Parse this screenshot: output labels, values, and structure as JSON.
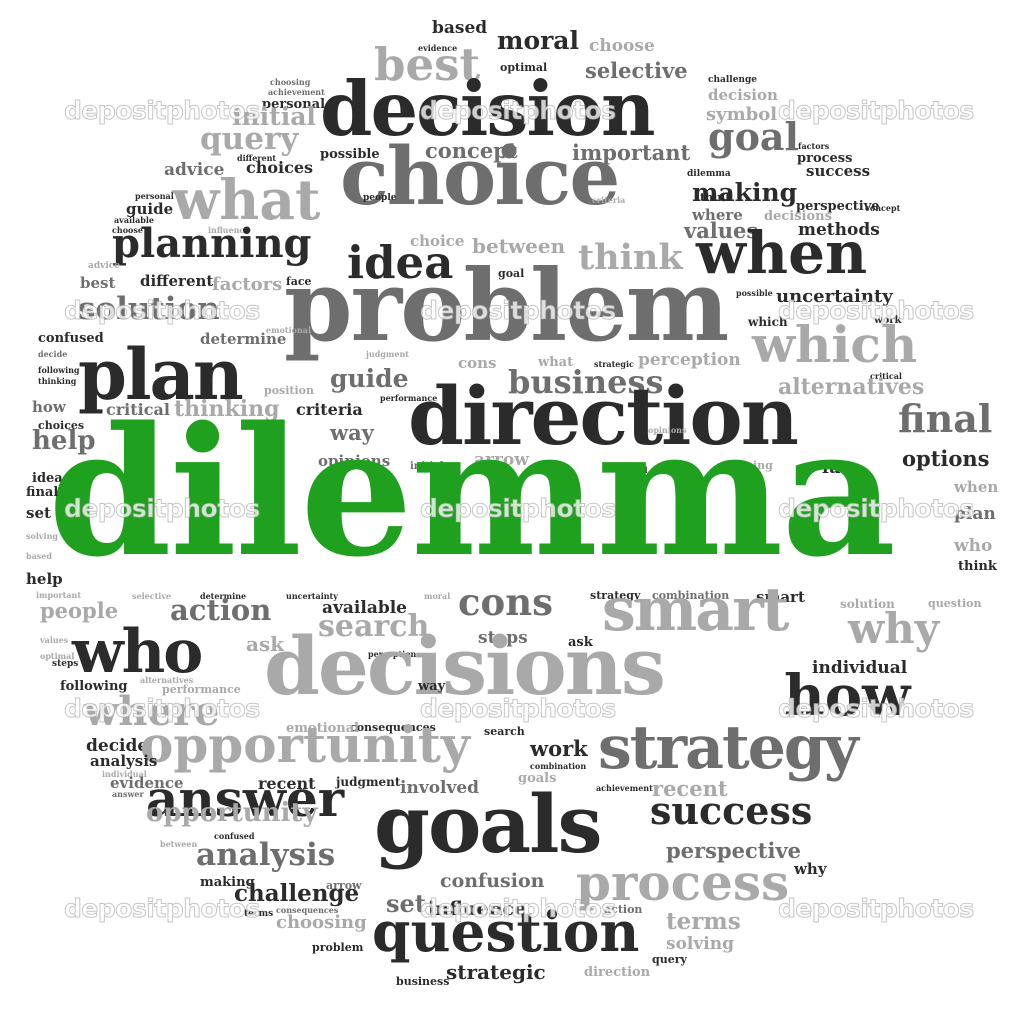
{
  "colors": {
    "dark": "#2b2b2b",
    "mid": "#6e6e6e",
    "light": "#a9a9a9",
    "accent": "#1fa11f",
    "background": "#ffffff"
  },
  "watermark": "depositphotos",
  "words": [
    {
      "t": "based",
      "c": "dark"
    },
    {
      "t": "evidence",
      "c": "dark"
    },
    {
      "t": "moral",
      "c": "dark"
    },
    {
      "t": "choose",
      "c": "light"
    },
    {
      "t": "best",
      "c": "light"
    },
    {
      "t": "optimal",
      "c": "dark"
    },
    {
      "t": "selective",
      "c": "mid"
    },
    {
      "t": "challenge",
      "c": "dark"
    },
    {
      "t": "choosing",
      "c": "mid"
    },
    {
      "t": "achievement",
      "c": "mid"
    },
    {
      "t": "personal",
      "c": "dark"
    },
    {
      "t": "decision",
      "c": "dark"
    },
    {
      "t": "decision",
      "c": "light"
    },
    {
      "t": "symbol",
      "c": "light"
    },
    {
      "t": "initial",
      "c": "light"
    },
    {
      "t": "query",
      "c": "light"
    },
    {
      "t": "goal",
      "c": "mid"
    },
    {
      "t": "different",
      "c": "dark"
    },
    {
      "t": "possible",
      "c": "dark"
    },
    {
      "t": "concept",
      "c": "mid"
    },
    {
      "t": "important",
      "c": "mid"
    },
    {
      "t": "factors",
      "c": "dark"
    },
    {
      "t": "process",
      "c": "dark"
    },
    {
      "t": "advice",
      "c": "mid"
    },
    {
      "t": "choices",
      "c": "dark"
    },
    {
      "t": "choice",
      "c": "mid"
    },
    {
      "t": "dilemma",
      "c": "dark"
    },
    {
      "t": "success",
      "c": "dark"
    },
    {
      "t": "what",
      "c": "light"
    },
    {
      "t": "making",
      "c": "dark"
    },
    {
      "t": "personal",
      "c": "dark"
    },
    {
      "t": "guide",
      "c": "dark"
    },
    {
      "t": "people",
      "c": "dark"
    },
    {
      "t": "criteria",
      "c": "light"
    },
    {
      "t": "think",
      "c": "dark"
    },
    {
      "t": "concept",
      "c": "dark"
    },
    {
      "t": "available",
      "c": "dark"
    },
    {
      "t": "choose",
      "c": "dark"
    },
    {
      "t": "influence",
      "c": "light"
    },
    {
      "t": "perspective",
      "c": "dark"
    },
    {
      "t": "where",
      "c": "mid"
    },
    {
      "t": "decisions",
      "c": "light"
    },
    {
      "t": "values",
      "c": "mid"
    },
    {
      "t": "methods",
      "c": "dark"
    },
    {
      "t": "planning",
      "c": "dark"
    },
    {
      "t": "choice",
      "c": "light"
    },
    {
      "t": "between",
      "c": "light"
    },
    {
      "t": "idea",
      "c": "dark"
    },
    {
      "t": "think",
      "c": "light"
    },
    {
      "t": "when",
      "c": "dark"
    },
    {
      "t": "advice",
      "c": "light"
    },
    {
      "t": "best",
      "c": "mid"
    },
    {
      "t": "different",
      "c": "dark"
    },
    {
      "t": "factors",
      "c": "light"
    },
    {
      "t": "face",
      "c": "dark"
    },
    {
      "t": "goal",
      "c": "dark"
    },
    {
      "t": "possible",
      "c": "dark"
    },
    {
      "t": "uncertainty",
      "c": "dark"
    },
    {
      "t": "solution",
      "c": "mid"
    },
    {
      "t": "problem",
      "c": "mid"
    },
    {
      "t": "which",
      "c": "dark"
    },
    {
      "t": "work",
      "c": "dark"
    },
    {
      "t": "emotional",
      "c": "light"
    },
    {
      "t": "judgment",
      "c": "light"
    },
    {
      "t": "confused",
      "c": "dark"
    },
    {
      "t": "determine",
      "c": "mid"
    },
    {
      "t": "which",
      "c": "light"
    },
    {
      "t": "plan",
      "c": "dark"
    },
    {
      "t": "decide",
      "c": "mid"
    },
    {
      "t": "following",
      "c": "dark"
    },
    {
      "t": "cons",
      "c": "light"
    },
    {
      "t": "what",
      "c": "light"
    },
    {
      "t": "strategic",
      "c": "dark"
    },
    {
      "t": "perception",
      "c": "light"
    },
    {
      "t": "guide",
      "c": "mid"
    },
    {
      "t": "business",
      "c": "mid"
    },
    {
      "t": "critical",
      "c": "dark"
    },
    {
      "t": "thinking",
      "c": "dark"
    },
    {
      "t": "alternatives",
      "c": "light"
    },
    {
      "t": "position",
      "c": "light"
    },
    {
      "t": "performance",
      "c": "dark"
    },
    {
      "t": "how",
      "c": "mid"
    },
    {
      "t": "direction",
      "c": "dark"
    },
    {
      "t": "critical",
      "c": "mid"
    },
    {
      "t": "thinking",
      "c": "light"
    },
    {
      "t": "criteria",
      "c": "dark"
    },
    {
      "t": "final",
      "c": "mid"
    },
    {
      "t": "choices",
      "c": "dark"
    },
    {
      "t": "involved",
      "c": "dark"
    },
    {
      "t": "way",
      "c": "mid"
    },
    {
      "t": "opinions",
      "c": "light"
    },
    {
      "t": "help",
      "c": "mid"
    },
    {
      "t": "opinions",
      "c": "mid"
    },
    {
      "t": "initial",
      "c": "mid"
    },
    {
      "t": "arrow",
      "c": "light"
    },
    {
      "t": "symbol",
      "c": "dark"
    },
    {
      "t": "planning",
      "c": "light"
    },
    {
      "t": "options",
      "c": "dark"
    },
    {
      "t": "face",
      "c": "dark"
    },
    {
      "t": "idea",
      "c": "dark"
    },
    {
      "t": "dilemma",
      "c": "accent"
    },
    {
      "t": "when",
      "c": "light"
    },
    {
      "t": "final",
      "c": "dark"
    },
    {
      "t": "plan",
      "c": "mid"
    },
    {
      "t": "set",
      "c": "dark"
    },
    {
      "t": "solving",
      "c": "light"
    },
    {
      "t": "who",
      "c": "light"
    },
    {
      "t": "based",
      "c": "light"
    },
    {
      "t": "think",
      "c": "dark"
    },
    {
      "t": "help",
      "c": "dark"
    },
    {
      "t": "important",
      "c": "light"
    },
    {
      "t": "selective",
      "c": "light"
    },
    {
      "t": "determine",
      "c": "dark"
    },
    {
      "t": "uncertainty",
      "c": "dark"
    },
    {
      "t": "moral",
      "c": "light"
    },
    {
      "t": "strategy",
      "c": "dark"
    },
    {
      "t": "combination",
      "c": "mid"
    },
    {
      "t": "smart",
      "c": "dark"
    },
    {
      "t": "solution",
      "c": "light"
    },
    {
      "t": "question",
      "c": "light"
    },
    {
      "t": "people",
      "c": "light"
    },
    {
      "t": "action",
      "c": "mid"
    },
    {
      "t": "available",
      "c": "dark"
    },
    {
      "t": "cons",
      "c": "mid"
    },
    {
      "t": "smart",
      "c": "light"
    },
    {
      "t": "why",
      "c": "light"
    },
    {
      "t": "values",
      "c": "light"
    },
    {
      "t": "search",
      "c": "light"
    },
    {
      "t": "who",
      "c": "dark"
    },
    {
      "t": "ask",
      "c": "light"
    },
    {
      "t": "steps",
      "c": "mid"
    },
    {
      "t": "ask",
      "c": "dark"
    },
    {
      "t": "optimal",
      "c": "light"
    },
    {
      "t": "steps",
      "c": "dark"
    },
    {
      "t": "perception",
      "c": "dark"
    },
    {
      "t": "individual",
      "c": "dark"
    },
    {
      "t": "following",
      "c": "dark"
    },
    {
      "t": "alternatives",
      "c": "light"
    },
    {
      "t": "decisions",
      "c": "light"
    },
    {
      "t": "way",
      "c": "dark"
    },
    {
      "t": "how",
      "c": "dark"
    },
    {
      "t": "performance",
      "c": "light"
    },
    {
      "t": "where",
      "c": "light"
    },
    {
      "t": "consequences",
      "c": "dark"
    },
    {
      "t": "emotional",
      "c": "light"
    },
    {
      "t": "search",
      "c": "dark"
    },
    {
      "t": "decide",
      "c": "dark"
    },
    {
      "t": "opportunity",
      "c": "light"
    },
    {
      "t": "strategy",
      "c": "mid"
    },
    {
      "t": "analysis",
      "c": "dark"
    },
    {
      "t": "work",
      "c": "dark"
    },
    {
      "t": "combination",
      "c": "dark"
    },
    {
      "t": "individual",
      "c": "light"
    },
    {
      "t": "recent",
      "c": "dark"
    },
    {
      "t": "judgment",
      "c": "dark"
    },
    {
      "t": "goals",
      "c": "light"
    },
    {
      "t": "achievement",
      "c": "dark"
    },
    {
      "t": "answer",
      "c": "dark"
    },
    {
      "t": "evidence",
      "c": "mid"
    },
    {
      "t": "involved",
      "c": "mid"
    },
    {
      "t": "opportunity",
      "c": "light"
    },
    {
      "t": "answer",
      "c": "mid"
    },
    {
      "t": "recent",
      "c": "light"
    },
    {
      "t": "success",
      "c": "dark"
    },
    {
      "t": "goals",
      "c": "dark"
    },
    {
      "t": "between",
      "c": "light"
    },
    {
      "t": "confused",
      "c": "dark"
    },
    {
      "t": "perspective",
      "c": "mid"
    },
    {
      "t": "analysis",
      "c": "mid"
    },
    {
      "t": "making",
      "c": "dark"
    },
    {
      "t": "process",
      "c": "light"
    },
    {
      "t": "arrow",
      "c": "mid"
    },
    {
      "t": "confusion",
      "c": "mid"
    },
    {
      "t": "why",
      "c": "dark"
    },
    {
      "t": "challenge",
      "c": "dark"
    },
    {
      "t": "terms",
      "c": "dark"
    },
    {
      "t": "consequences",
      "c": "mid"
    },
    {
      "t": "set",
      "c": "mid"
    },
    {
      "t": "influence",
      "c": "dark"
    },
    {
      "t": "action",
      "c": "mid"
    },
    {
      "t": "choosing",
      "c": "light"
    },
    {
      "t": "terms",
      "c": "light"
    },
    {
      "t": "question",
      "c": "dark"
    },
    {
      "t": "solving",
      "c": "light"
    },
    {
      "t": "problem",
      "c": "dark"
    },
    {
      "t": "query",
      "c": "dark"
    },
    {
      "t": "business",
      "c": "dark"
    },
    {
      "t": "strategic",
      "c": "dark"
    },
    {
      "t": "direction",
      "c": "light"
    }
  ]
}
